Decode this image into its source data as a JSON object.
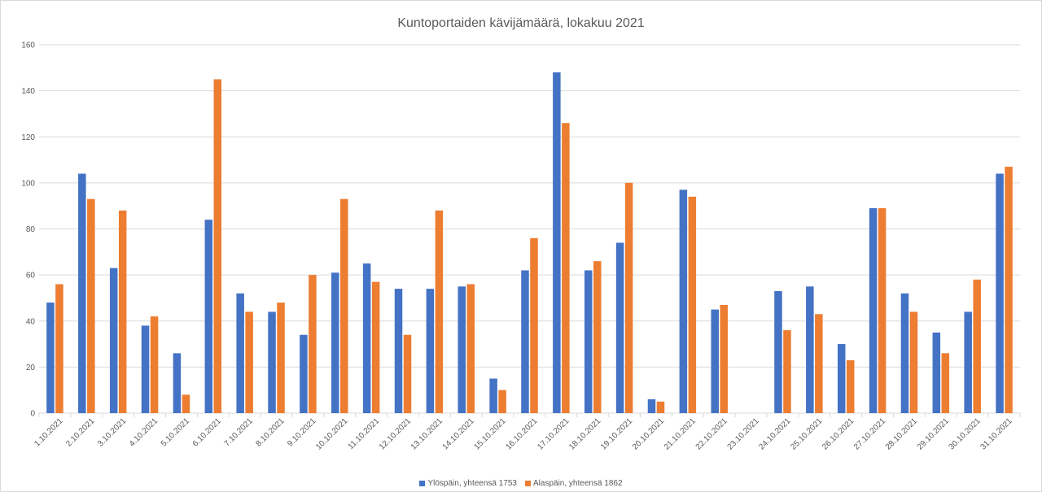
{
  "chart_data": {
    "type": "bar",
    "title": "Kuntoportaiden kävijämäärä, lokakuu 2021",
    "categories": [
      "1.10.2021",
      "2.10.2021",
      "3.10.2021",
      "4.10.2021",
      "5.10.2021",
      "6.10.2021",
      "7.10.2021",
      "8.10.2021",
      "9.10.2021",
      "10.10.2021",
      "11.10.2021",
      "12.10.2021",
      "13.10.2021",
      "14.10.2021",
      "15.10.2021",
      "16.10.2021",
      "17.10.2021",
      "18.10.2021",
      "19.10.2021",
      "20.10.2021",
      "21.10.2021",
      "22.10.2021",
      "23.10.2021",
      "24.10.2021",
      "25.10.2021",
      "26.10.2021",
      "27.10.2021",
      "28.10.2021",
      "29.10.2021",
      "30.10.2021",
      "31.10.2021"
    ],
    "series": [
      {
        "name": "Ylöspäin, yhteensä 1753",
        "color": "#4472c4",
        "values": [
          48,
          104,
          63,
          38,
          26,
          84,
          52,
          44,
          34,
          61,
          65,
          54,
          54,
          55,
          15,
          62,
          148,
          62,
          74,
          6,
          97,
          45,
          0,
          53,
          55,
          30,
          89,
          52,
          35,
          44,
          104
        ]
      },
      {
        "name": "Alaspäin, yhteensä 1862",
        "color": "#ed7d31",
        "values": [
          56,
          93,
          88,
          42,
          8,
          145,
          44,
          48,
          60,
          93,
          57,
          34,
          88,
          56,
          10,
          76,
          126,
          66,
          100,
          5,
          94,
          47,
          0,
          36,
          43,
          23,
          89,
          44,
          26,
          58,
          107
        ]
      }
    ],
    "ylim": [
      0,
      160
    ],
    "yticks": [
      0,
      20,
      40,
      60,
      80,
      100,
      120,
      140,
      160
    ],
    "grid": true,
    "legend_position": "bottom"
  }
}
